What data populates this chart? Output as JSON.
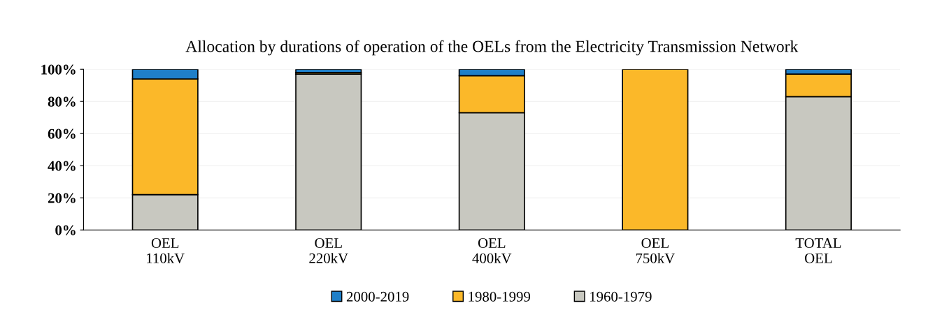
{
  "chart_data": {
    "type": "bar",
    "stacked": true,
    "title": "Allocation by durations of operation of the OELs from the Electricity Transmission Network",
    "categories": [
      "OEL\n110kV",
      "OEL\n220kV",
      "OEL\n400kV",
      "OEL\n750kV",
      "TOTAL\nOEL"
    ],
    "series": [
      {
        "name": "1960-1979",
        "color": "#c8c8c0",
        "values": [
          22,
          97,
          73,
          null,
          83
        ]
      },
      {
        "name": "1980-1999",
        "color": "#fbb829",
        "values": [
          72,
          1,
          23,
          100,
          14
        ]
      },
      {
        "name": "2000-2019",
        "color": "#1f7fc8",
        "values": [
          6,
          2,
          4,
          null,
          3
        ]
      }
    ],
    "ylim": [
      0,
      100
    ],
    "yticks": [
      {
        "value": 0,
        "label": "0%"
      },
      {
        "value": 20,
        "label": "20%"
      },
      {
        "value": 40,
        "label": "40%"
      },
      {
        "value": 60,
        "label": "60%"
      },
      {
        "value": 80,
        "label": "80%"
      },
      {
        "value": 100,
        "label": "100%"
      }
    ],
    "grid": "y",
    "legend": "bottom"
  }
}
